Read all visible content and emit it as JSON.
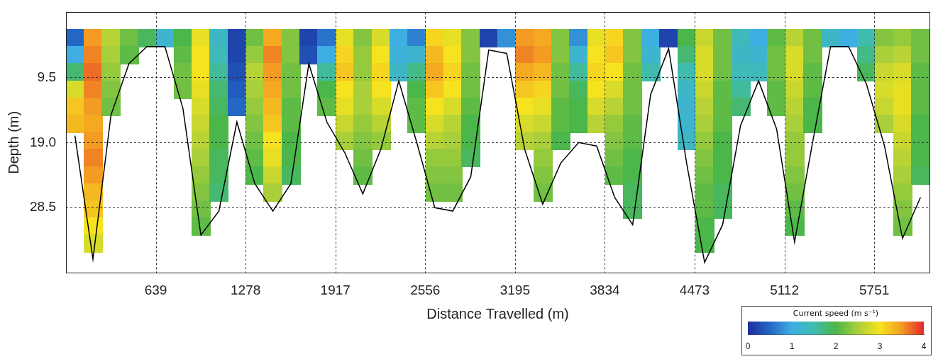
{
  "chart_data": {
    "type": "heatmap",
    "x_label": "Distance Travelled (m)",
    "y_label": "Depth (m)",
    "xlim": [
      0,
      6144
    ],
    "xticks": [
      639,
      1278,
      1917,
      2556,
      3195,
      3834,
      4473,
      5112,
      5751
    ],
    "ylim": [
      0,
      38
    ],
    "yticks": [
      9.5,
      {
        "value": 19,
        "label": "19.0"
      },
      28.5
    ],
    "grid": true,
    "x_edges": [
      0,
      128,
      256,
      384,
      512,
      640,
      768,
      896,
      1024,
      1152,
      1280,
      1408,
      1536,
      1664,
      1792,
      1920,
      2048,
      2176,
      2304,
      2432,
      2560,
      2688,
      2816,
      2944,
      3072,
      3200,
      3328,
      3456,
      3584,
      3712,
      3840,
      3968,
      4096,
      4224,
      4352,
      4480,
      4608,
      4736,
      4864,
      4992,
      5120,
      5248,
      5376,
      5504,
      5632,
      5760,
      5888,
      6016,
      6144
    ],
    "depth_edges": [
      2.5,
      5,
      7.5,
      10,
      12.5,
      15,
      17.5,
      20,
      22.5,
      25,
      27.5,
      30,
      32.5,
      35,
      37.5
    ],
    "speed": [
      [
        0.5,
        1.0,
        1.8,
        2.8,
        3.2,
        3.3,
        null,
        null,
        null,
        null,
        null,
        null,
        null,
        null
      ],
      [
        3.5,
        3.6,
        3.7,
        3.6,
        3.5,
        3.4,
        3.5,
        3.6,
        3.5,
        3.3,
        3.2,
        3.0,
        2.8,
        null
      ],
      [
        2.6,
        2.5,
        2.4,
        2.3,
        2.2,
        null,
        null,
        null,
        null,
        null,
        null,
        null,
        null,
        null
      ],
      [
        2.2,
        2.1,
        null,
        null,
        null,
        null,
        null,
        null,
        null,
        null,
        null,
        null,
        null,
        null
      ],
      [
        1.9,
        null,
        null,
        null,
        null,
        null,
        null,
        null,
        null,
        null,
        null,
        null,
        null,
        null
      ],
      [
        1.2,
        null,
        null,
        null,
        null,
        null,
        null,
        null,
        null,
        null,
        null,
        null,
        null,
        null
      ],
      [
        2.0,
        2.1,
        2.2,
        2.2,
        null,
        null,
        null,
        null,
        null,
        null,
        null,
        null,
        null,
        null
      ],
      [
        2.9,
        3.0,
        3.0,
        2.9,
        2.8,
        2.7,
        2.6,
        2.5,
        2.4,
        2.3,
        2.2,
        2.1,
        null,
        null
      ],
      [
        1.3,
        1.4,
        1.6,
        1.8,
        1.9,
        2.0,
        2.0,
        1.9,
        1.9,
        1.8,
        null,
        null,
        null,
        null
      ],
      [
        0.2,
        0.2,
        0.3,
        0.4,
        0.5,
        null,
        null,
        null,
        null,
        null,
        null,
        null,
        null,
        null
      ],
      [
        2.2,
        2.4,
        2.6,
        2.5,
        2.4,
        2.3,
        2.2,
        2.1,
        2.0,
        null,
        null,
        null,
        null,
        null
      ],
      [
        3.4,
        3.6,
        3.5,
        3.4,
        3.3,
        3.2,
        3.0,
        2.9,
        2.7,
        2.5,
        null,
        null,
        null,
        null
      ],
      [
        2.3,
        2.3,
        2.2,
        2.2,
        2.1,
        2.1,
        2.0,
        2.0,
        1.9,
        null,
        null,
        null,
        null,
        null
      ],
      [
        0.2,
        0.3,
        null,
        null,
        null,
        null,
        null,
        null,
        null,
        null,
        null,
        null,
        null,
        null
      ],
      [
        0.6,
        1.0,
        1.6,
        2.0,
        2.1,
        null,
        null,
        null,
        null,
        null,
        null,
        null,
        null,
        null
      ],
      [
        2.9,
        3.1,
        3.2,
        3.0,
        2.9,
        2.7,
        2.5,
        null,
        null,
        null,
        null,
        null,
        null,
        null
      ],
      [
        2.3,
        2.4,
        2.4,
        2.5,
        2.5,
        2.4,
        2.3,
        2.2,
        2.1,
        null,
        null,
        null,
        null,
        null
      ],
      [
        2.8,
        3.0,
        3.1,
        3.0,
        2.8,
        2.6,
        2.4,
        null,
        null,
        null,
        null,
        null,
        null,
        null
      ],
      [
        1.0,
        1.1,
        1.3,
        null,
        null,
        null,
        null,
        null,
        null,
        null,
        null,
        null,
        null,
        null
      ],
      [
        0.7,
        1.2,
        1.7,
        2.0,
        2.1,
        2.1,
        null,
        null,
        null,
        null,
        null,
        null,
        null,
        null
      ],
      [
        3.1,
        3.3,
        3.4,
        3.2,
        3.0,
        2.8,
        2.6,
        2.4,
        2.3,
        2.2,
        null,
        null,
        null,
        null
      ],
      [
        2.9,
        3.0,
        3.1,
        3.0,
        2.8,
        2.6,
        2.5,
        2.4,
        2.3,
        2.2,
        null,
        null,
        null,
        null
      ],
      [
        2.3,
        2.3,
        2.2,
        2.2,
        2.1,
        2.0,
        2.0,
        1.9,
        null,
        null,
        null,
        null,
        null,
        null
      ],
      [
        0.2,
        null,
        null,
        null,
        null,
        null,
        null,
        null,
        null,
        null,
        null,
        null,
        null,
        null
      ],
      [
        0.8,
        null,
        null,
        null,
        null,
        null,
        null,
        null,
        null,
        null,
        null,
        null,
        null,
        null
      ],
      [
        3.5,
        3.6,
        3.4,
        3.2,
        3.0,
        2.8,
        2.6,
        null,
        null,
        null,
        null,
        null,
        null,
        null
      ],
      [
        3.4,
        3.5,
        3.3,
        3.1,
        2.9,
        2.7,
        2.5,
        2.4,
        2.3,
        2.2,
        null,
        null,
        null,
        null
      ],
      [
        2.3,
        2.3,
        2.2,
        2.2,
        2.1,
        2.1,
        2.0,
        null,
        null,
        null,
        null,
        null,
        null,
        null
      ],
      [
        0.8,
        1.2,
        1.6,
        1.9,
        2.0,
        2.0,
        null,
        null,
        null,
        null,
        null,
        null,
        null,
        null
      ],
      [
        2.9,
        3.0,
        3.1,
        3.0,
        2.8,
        2.6,
        null,
        null,
        null,
        null,
        null,
        null,
        null,
        null
      ],
      [
        3.1,
        3.2,
        3.0,
        2.8,
        2.6,
        2.4,
        2.3,
        2.2,
        2.1,
        null,
        null,
        null,
        null,
        null
      ],
      [
        2.3,
        2.3,
        2.2,
        2.2,
        2.2,
        2.1,
        2.1,
        2.0,
        2.0,
        1.9,
        1.9,
        null,
        null,
        null
      ],
      [
        1.0,
        1.2,
        1.5,
        null,
        null,
        null,
        null,
        null,
        null,
        null,
        null,
        null,
        null,
        null
      ],
      [
        0.2,
        null,
        null,
        null,
        null,
        null,
        null,
        null,
        null,
        null,
        null,
        null,
        null,
        null
      ],
      [
        2.0,
        1.8,
        1.5,
        1.3,
        1.2,
        1.2,
        1.3,
        null,
        null,
        null,
        null,
        null,
        null,
        null
      ],
      [
        2.7,
        2.8,
        2.8,
        2.7,
        2.6,
        2.5,
        2.4,
        2.3,
        2.2,
        2.1,
        2.1,
        2.0,
        2.0,
        null
      ],
      [
        2.2,
        2.2,
        2.2,
        2.1,
        2.1,
        2.1,
        2.0,
        2.0,
        2.0,
        1.9,
        1.9,
        null,
        null,
        null
      ],
      [
        1.4,
        1.3,
        1.4,
        1.6,
        1.8,
        null,
        null,
        null,
        null,
        null,
        null,
        null,
        null,
        null
      ],
      [
        1.0,
        1.2,
        1.4,
        null,
        null,
        null,
        null,
        null,
        null,
        null,
        null,
        null,
        null,
        null
      ],
      [
        2.1,
        2.2,
        2.2,
        2.1,
        2.1,
        null,
        null,
        null,
        null,
        null,
        null,
        null,
        null,
        null
      ],
      [
        2.6,
        2.8,
        2.8,
        2.7,
        2.6,
        2.5,
        2.4,
        2.4,
        2.3,
        2.2,
        2.1,
        2.0,
        null,
        null
      ],
      [
        2.2,
        2.2,
        2.1,
        2.1,
        2.0,
        2.0,
        null,
        null,
        null,
        null,
        null,
        null,
        null,
        null
      ],
      [
        1.3,
        null,
        null,
        null,
        null,
        null,
        null,
        null,
        null,
        null,
        null,
        null,
        null,
        null
      ],
      [
        1.0,
        null,
        null,
        null,
        null,
        null,
        null,
        null,
        null,
        null,
        null,
        null,
        null,
        null
      ],
      [
        1.5,
        1.7,
        1.9,
        null,
        null,
        null,
        null,
        null,
        null,
        null,
        null,
        null,
        null,
        null
      ],
      [
        2.3,
        2.5,
        2.7,
        2.8,
        2.7,
        2.5,
        null,
        null,
        null,
        null,
        null,
        null,
        null,
        null
      ],
      [
        2.4,
        2.6,
        2.8,
        2.9,
        2.9,
        2.8,
        2.7,
        2.6,
        2.5,
        2.4,
        2.3,
        2.2,
        null,
        null
      ],
      [
        2.2,
        2.2,
        2.1,
        2.1,
        2.1,
        2.0,
        2.0,
        2.0,
        1.9,
        null,
        null,
        null,
        null,
        null
      ]
    ],
    "bed": {
      "x": [
        64,
        192,
        320,
        448,
        576,
        704,
        832,
        960,
        1088,
        1216,
        1344,
        1472,
        1600,
        1728,
        1856,
        1984,
        2112,
        2240,
        2368,
        2496,
        2624,
        2752,
        2880,
        3008,
        3136,
        3264,
        3392,
        3520,
        3648,
        3776,
        3904,
        4032,
        4160,
        4288,
        4416,
        4544,
        4672,
        4800,
        4928,
        5056,
        5184,
        5312,
        5440,
        5568,
        5696,
        5824,
        5952,
        6080
      ],
      "depth": [
        18,
        36,
        15,
        7.5,
        5,
        5,
        14,
        32.5,
        29,
        16,
        25,
        29,
        25,
        7.5,
        16,
        20.5,
        26.5,
        20,
        10,
        19,
        28.5,
        29,
        24,
        5.5,
        6,
        20,
        28,
        22,
        19,
        19.5,
        27,
        31,
        12,
        5.3,
        22,
        36.5,
        31,
        16.5,
        10,
        17,
        33.5,
        19,
        5,
        5,
        10.5,
        19.5,
        33,
        27
      ],
      "color": "#000000"
    },
    "colorbar": {
      "label": "Current speed (m s⁻¹)",
      "range": [
        0,
        4
      ],
      "ticks": [
        0,
        1,
        2,
        3,
        4
      ]
    }
  }
}
